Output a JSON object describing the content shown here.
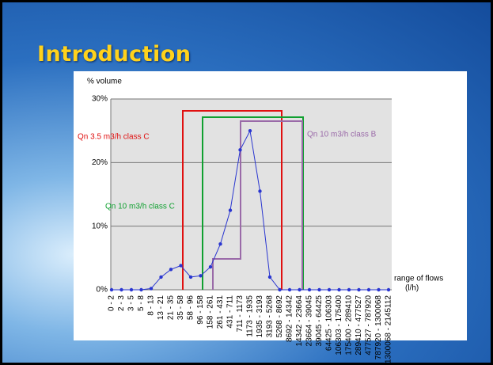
{
  "slide_title": "Introduction",
  "chart_data": {
    "type": "line",
    "y_label": "% volume",
    "x_label": "range of flows",
    "x_unit": "(l/h)",
    "categories": [
      "0 - 2",
      "2 - 3",
      "3 - 5",
      "5 - 8",
      "8 - 13",
      "13 - 21",
      "21 - 35",
      "35 - 58",
      "58 - 96",
      "96 - 158",
      "158 - 261",
      "261 - 431",
      "431 - 711",
      "711 - 1173",
      "1173 - 1935",
      "1935 - 3193",
      "3193 - 5268",
      "5268 - 8692",
      "8692 - 14342",
      "14342 - 23664",
      "23664 - 39045",
      "39045 - 64425",
      "64425 - 106303",
      "106303 - 175400",
      "175400 - 289410",
      "289410 - 477527",
      "477527 - 787920",
      "787920 - 1300068",
      "1300068 - 2145112"
    ],
    "values": [
      0,
      0,
      0,
      0,
      0.2,
      2,
      3.2,
      3.8,
      2,
      2.2,
      3.6,
      7.2,
      12.5,
      22,
      25,
      15.5,
      2,
      0,
      0,
      0,
      0,
      0,
      0,
      0,
      0,
      0,
      0,
      0,
      0
    ],
    "color": "#2a36d0",
    "ylim": [
      0,
      30
    ],
    "yticks": [
      {
        "value": 0,
        "label": "0%"
      },
      {
        "value": 10,
        "label": "10%"
      },
      {
        "value": 20,
        "label": "20%"
      },
      {
        "value": 30,
        "label": "30%"
      }
    ],
    "grid": true,
    "annotations": [
      {
        "text": "Qn 3.5 m3/h class C",
        "color": "#e01010"
      },
      {
        "text": "Qn 10 m3/h class C",
        "color": "#10a030"
      },
      {
        "text": "Qn 10 m3/h class B",
        "color": "#9a6aa8"
      }
    ]
  }
}
